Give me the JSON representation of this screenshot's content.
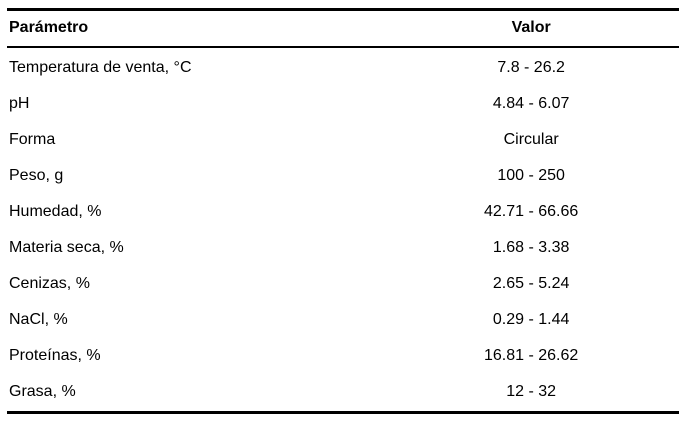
{
  "table": {
    "headers": {
      "parametro": "Parámetro",
      "valor": "Valor"
    },
    "rows": [
      {
        "parametro": "Temperatura de venta, °C",
        "valor": "7.8 - 26.2"
      },
      {
        "parametro": "pH",
        "valor": "4.84 - 6.07"
      },
      {
        "parametro": "Forma",
        "valor": "Circular"
      },
      {
        "parametro": "Peso, g",
        "valor": "100 - 250"
      },
      {
        "parametro": "Humedad, %",
        "valor": "42.71 - 66.66"
      },
      {
        "parametro": "Materia seca, %",
        "valor": "1.68 - 3.38"
      },
      {
        "parametro": "Cenizas, %",
        "valor": "2.65 - 5.24"
      },
      {
        "parametro": "NaCl, %",
        "valor": "0.29 - 1.44"
      },
      {
        "parametro": "Proteínas, %",
        "valor": "16.81 - 26.62"
      },
      {
        "parametro": "Grasa, %",
        "valor": "12 - 32"
      }
    ]
  }
}
